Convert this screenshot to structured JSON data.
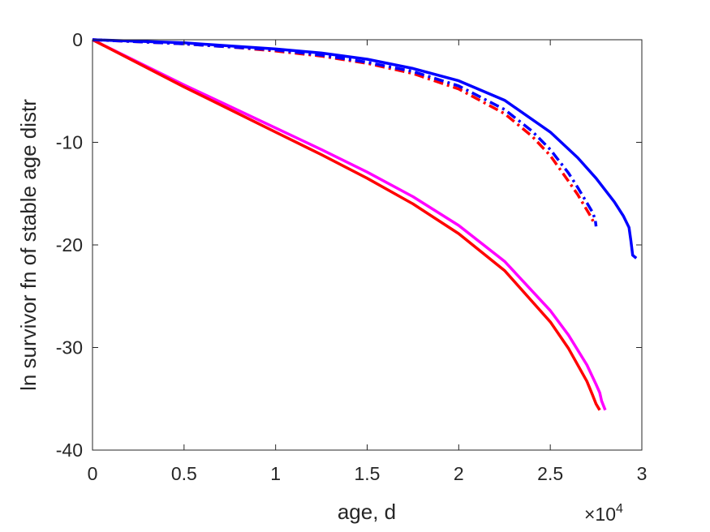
{
  "chart_data": {
    "type": "line",
    "title": "",
    "xlabel": "age, d",
    "ylabel": "ln survivor fn of stable age distr",
    "xlim": [
      0,
      30000
    ],
    "ylim": [
      -40,
      0
    ],
    "x_exponent_label": "×10",
    "x_exponent_power": "4",
    "xticks": [
      0,
      5000,
      10000,
      15000,
      20000,
      25000,
      30000
    ],
    "xtick_labels": [
      "0",
      "0.5",
      "1",
      "1.5",
      "2",
      "2.5",
      "3"
    ],
    "yticks": [
      0,
      -10,
      -20,
      -30,
      -40
    ],
    "ytick_labels": [
      "0",
      "-10",
      "-20",
      "-30",
      "-40"
    ],
    "grid": false,
    "legend": "none",
    "series": [
      {
        "color": "#ff00ff",
        "style": "solid",
        "width": 3.5,
        "x": [
          0,
          2500,
          5000,
          7500,
          10000,
          12500,
          15000,
          17500,
          20000,
          22500,
          25000,
          26000,
          27000,
          27500,
          27700,
          27800,
          28000
        ],
        "y": [
          0,
          -2.2,
          -4.4,
          -6.5,
          -8.6,
          -10.7,
          -12.9,
          -15.3,
          -18.1,
          -21.6,
          -26.4,
          -28.8,
          -31.7,
          -33.6,
          -34.4,
          -35.2,
          -36.1
        ]
      },
      {
        "color": "#ff0000",
        "style": "solid",
        "width": 3.5,
        "x": [
          0,
          2500,
          5000,
          7500,
          10000,
          12500,
          15000,
          17500,
          20000,
          22500,
          25000,
          26000,
          27000,
          27300,
          27500,
          27700
        ],
        "y": [
          0,
          -2.3,
          -4.6,
          -6.8,
          -9.0,
          -11.2,
          -13.5,
          -16.0,
          -18.9,
          -22.5,
          -27.5,
          -30.1,
          -33.3,
          -34.6,
          -35.5,
          -36.1
        ]
      },
      {
        "color": "#ff0000",
        "style": "dashdot",
        "width": 3.5,
        "x": [
          0,
          2500,
          5000,
          7500,
          10000,
          12500,
          15000,
          17500,
          20000,
          22500,
          24000,
          25000,
          26000,
          26500,
          27000,
          27200,
          27400
        ],
        "y": [
          0,
          -0.2,
          -0.4,
          -0.7,
          -1.1,
          -1.6,
          -2.3,
          -3.3,
          -4.8,
          -7.2,
          -9.4,
          -11.3,
          -13.8,
          -15.1,
          -16.6,
          -17.2,
          -17.9
        ]
      },
      {
        "color": "#0000ff",
        "style": "dashdot",
        "width": 3.5,
        "x": [
          0,
          2500,
          5000,
          7500,
          10000,
          12500,
          15000,
          17500,
          20000,
          22500,
          24000,
          25000,
          26000,
          26500,
          27000,
          27300,
          27450,
          27500
        ],
        "y": [
          0,
          -0.2,
          -0.4,
          -0.7,
          -1.0,
          -1.5,
          -2.2,
          -3.1,
          -4.5,
          -6.8,
          -8.9,
          -10.7,
          -13.0,
          -14.4,
          -15.9,
          -16.8,
          -17.5,
          -18.2
        ]
      },
      {
        "color": "#0000ff",
        "style": "solid",
        "width": 3.5,
        "x": [
          0,
          2500,
          5000,
          7500,
          10000,
          12500,
          15000,
          17500,
          20000,
          22500,
          25000,
          26500,
          27500,
          28500,
          29000,
          29300,
          29400,
          29500,
          29700
        ],
        "y": [
          0,
          -0.15,
          -0.3,
          -0.6,
          -0.9,
          -1.3,
          -1.9,
          -2.8,
          -4.0,
          -5.9,
          -9.0,
          -11.5,
          -13.5,
          -15.8,
          -17.2,
          -18.3,
          -19.6,
          -21.0,
          -21.3
        ]
      }
    ]
  }
}
